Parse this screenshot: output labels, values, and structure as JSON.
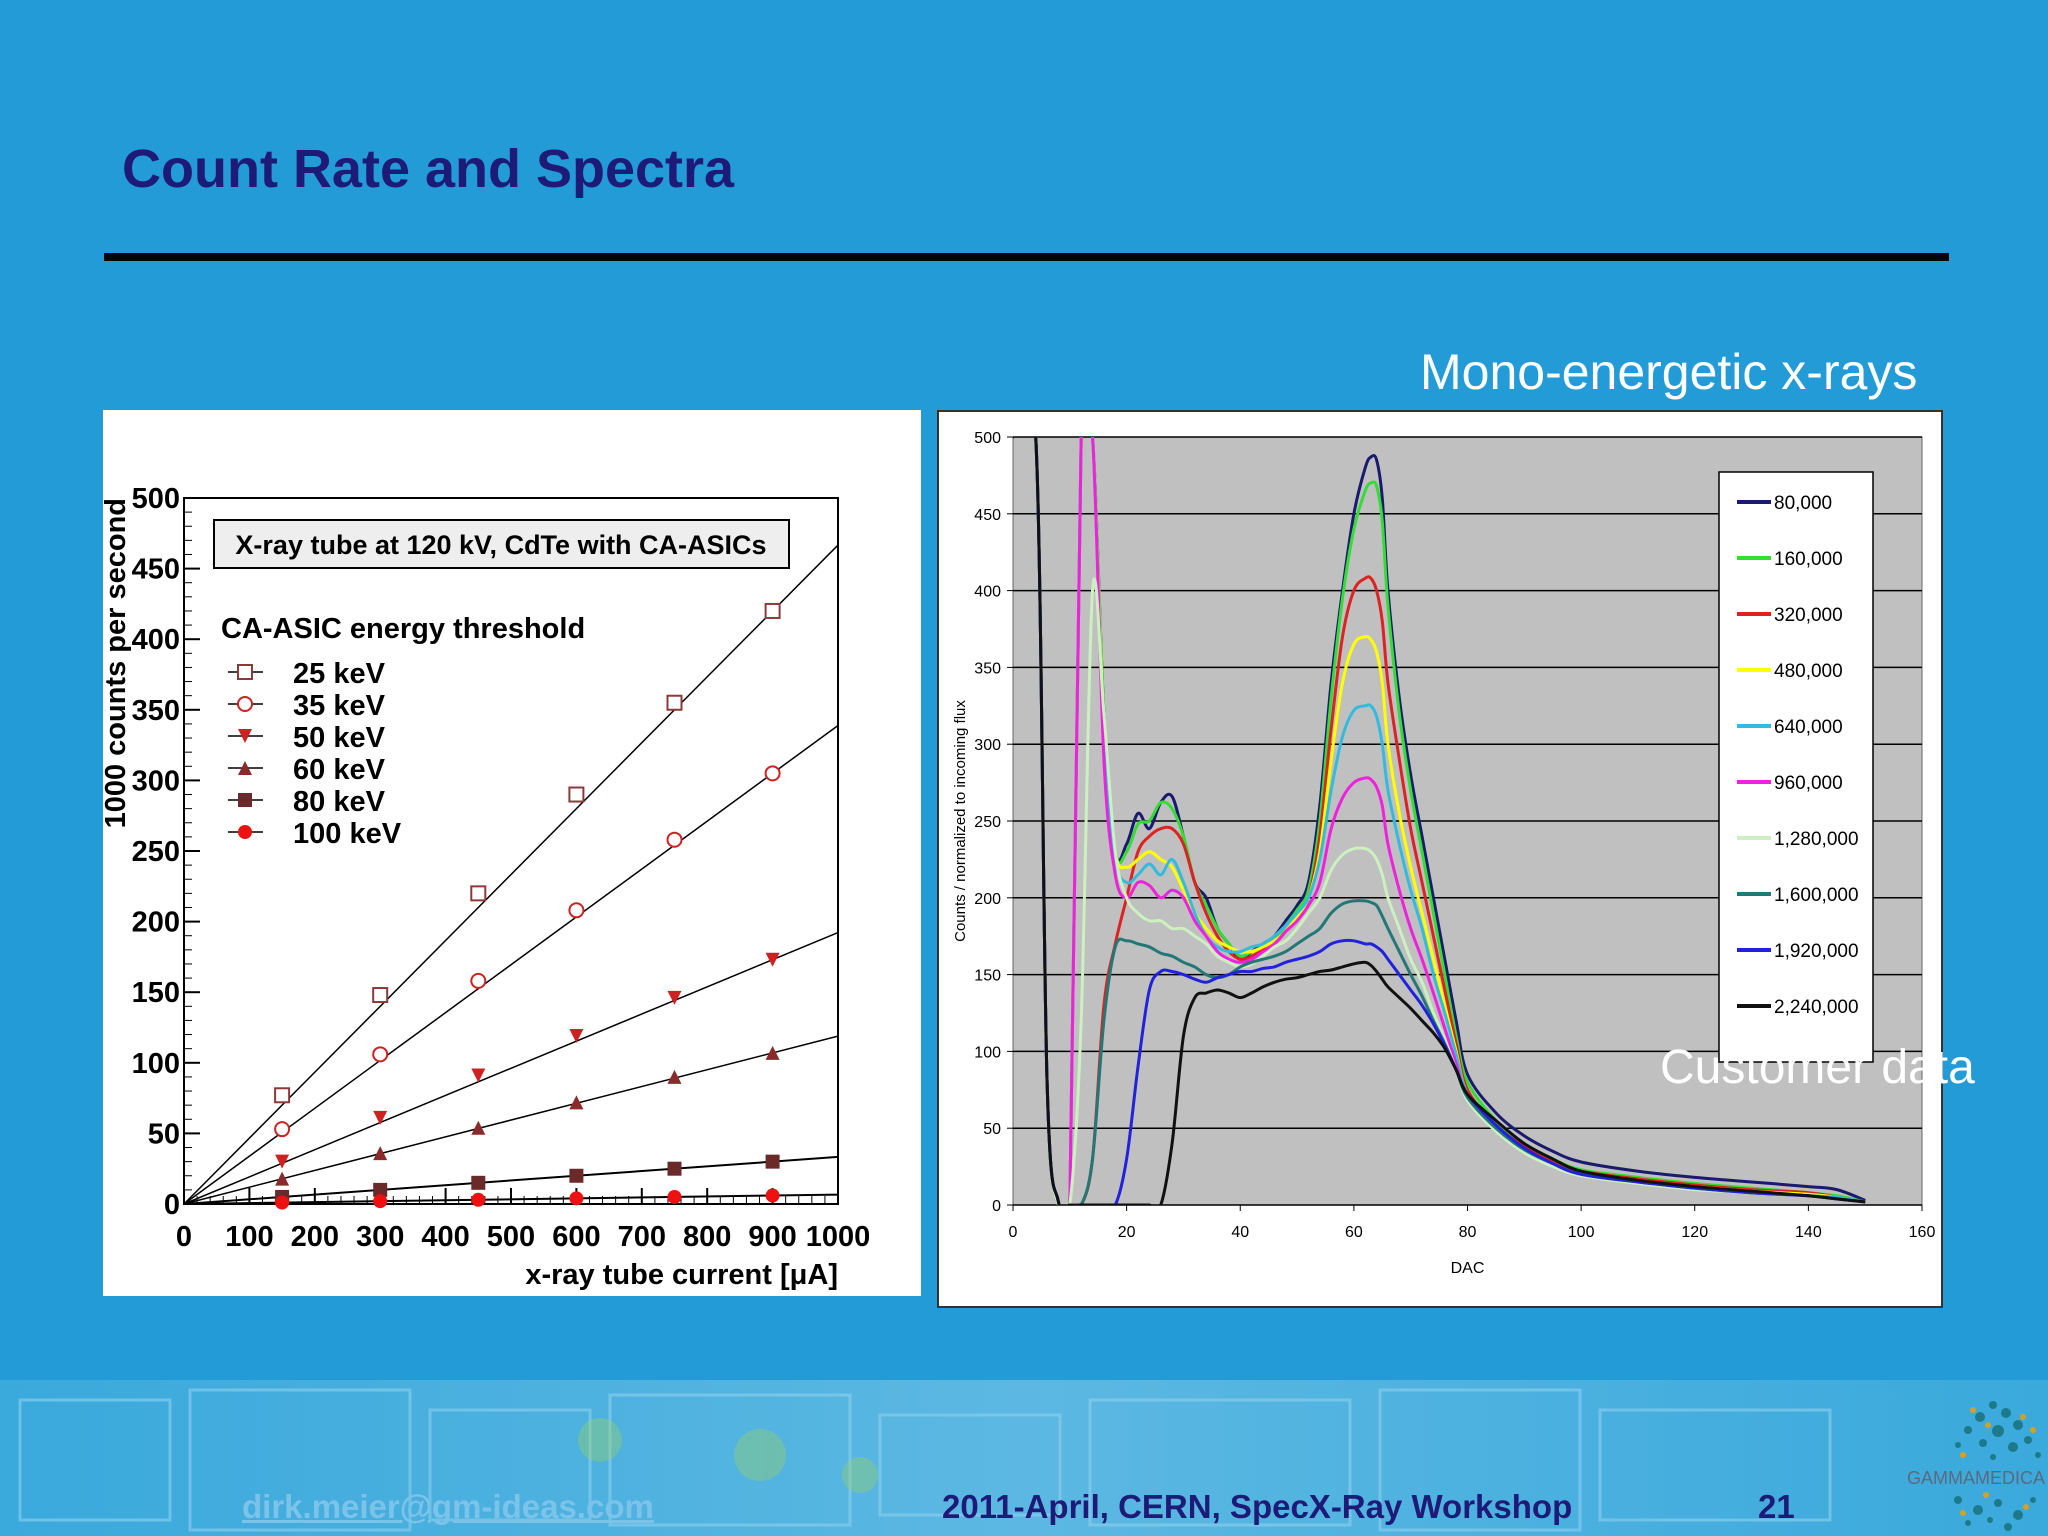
{
  "slide": {
    "title": "Count Rate and Spectra",
    "caption_mono": "Mono-energetic x-rays",
    "caption_customer": "Customer data"
  },
  "footer": {
    "email": "dirk.meier@gm-ideas.com",
    "event": "2011-April, CERN, SpecX-Ray  Workshop",
    "page": "21",
    "logo_text": "GAMMAMEDICA"
  },
  "colors": {
    "background": "#239bd6",
    "title": "#1d1a78",
    "rule": "#050505"
  },
  "chart_data": [
    {
      "type": "scatter",
      "title": "X-ray tube at 120 kV, CdTe with CA-ASICs",
      "legend_title": "CA-ASIC energy threshold",
      "legend_position": "top-left",
      "xlabel": "x-ray tube current [μA]",
      "ylabel": "1000 counts per second",
      "xlim": [
        0,
        1000
      ],
      "ylim": [
        0,
        500
      ],
      "xticks": [
        0,
        100,
        200,
        300,
        400,
        500,
        600,
        700,
        800,
        900,
        1000
      ],
      "yticks": [
        0,
        50,
        100,
        150,
        200,
        250,
        300,
        350,
        400,
        450,
        500
      ],
      "x": [
        150,
        300,
        450,
        600,
        750,
        900
      ],
      "grid": false,
      "series": [
        {
          "name": "25 keV",
          "marker": "square-open",
          "color": "#8b3a3a",
          "values": [
            77,
            148,
            220,
            290,
            355,
            420
          ]
        },
        {
          "name": "35 keV",
          "marker": "circle-open",
          "color": "#cc2222",
          "values": [
            53,
            106,
            158,
            208,
            258,
            305
          ]
        },
        {
          "name": "50 keV",
          "marker": "triangle-down",
          "color": "#cc2222",
          "values": [
            30,
            61,
            91,
            119,
            146,
            173
          ]
        },
        {
          "name": "60 keV",
          "marker": "triangle-up",
          "color": "#8b2a2a",
          "values": [
            18,
            36,
            54,
            72,
            90,
            107
          ]
        },
        {
          "name": "80 keV",
          "marker": "square",
          "color": "#6b2a2a",
          "values": [
            5,
            10,
            15,
            20,
            25,
            30
          ]
        },
        {
          "name": "100 keV",
          "marker": "circle",
          "color": "#ee1111",
          "values": [
            1,
            2,
            3,
            4,
            5,
            6
          ]
        }
      ]
    },
    {
      "type": "line",
      "xlabel": "DAC",
      "ylabel": "Counts / normalized to incoming flux",
      "xlim": [
        0,
        160
      ],
      "ylim": [
        0,
        500
      ],
      "xticks": [
        0,
        20,
        40,
        60,
        80,
        100,
        120,
        140,
        160
      ],
      "yticks": [
        0,
        50,
        100,
        150,
        200,
        250,
        300,
        350,
        400,
        450,
        500
      ],
      "grid": true,
      "legend_position": "right",
      "plot_background": "#c0c0c0",
      "x": [
        0,
        4,
        6,
        8,
        10,
        12,
        14,
        16,
        18,
        20,
        22,
        24,
        26,
        28,
        30,
        32,
        34,
        36,
        38,
        40,
        42,
        44,
        46,
        48,
        50,
        52,
        54,
        56,
        58,
        60,
        62,
        63,
        64,
        65,
        66,
        68,
        70,
        72,
        74,
        76,
        78,
        80,
        85,
        90,
        95,
        100,
        110,
        120,
        130,
        140,
        145,
        150
      ],
      "series": [
        {
          "name": "80,000",
          "color": "#1a1a6e",
          "values": [
            500,
            500,
            80,
            2,
            0,
            500,
            500,
            320,
            230,
            235,
            255,
            245,
            262,
            266,
            240,
            210,
            200,
            180,
            170,
            160,
            165,
            170,
            175,
            185,
            195,
            210,
            260,
            340,
            400,
            450,
            480,
            487,
            485,
            460,
            400,
            330,
            280,
            240,
            200,
            160,
            120,
            85,
            60,
            45,
            35,
            28,
            22,
            18,
            15,
            12,
            10,
            3
          ]
        },
        {
          "name": "160,000",
          "color": "#33dd33",
          "values": [
            500,
            500,
            80,
            2,
            0,
            500,
            500,
            320,
            230,
            230,
            248,
            250,
            262,
            258,
            240,
            210,
            195,
            180,
            170,
            162,
            165,
            168,
            172,
            182,
            192,
            205,
            250,
            330,
            395,
            440,
            465,
            470,
            468,
            445,
            390,
            320,
            270,
            230,
            190,
            150,
            110,
            80,
            55,
            40,
            30,
            23,
            18,
            14,
            11,
            8,
            6,
            2
          ]
        },
        {
          "name": "320,000",
          "color": "#dd2222",
          "values": [
            500,
            500,
            80,
            2,
            0,
            0,
            30,
            130,
            170,
            200,
            230,
            240,
            245,
            245,
            235,
            210,
            190,
            175,
            165,
            160,
            162,
            166,
            170,
            178,
            188,
            200,
            240,
            310,
            370,
            400,
            408,
            408,
            400,
            380,
            340,
            290,
            245,
            210,
            175,
            140,
            105,
            75,
            52,
            38,
            28,
            22,
            17,
            13,
            10,
            8,
            5,
            2
          ]
        },
        {
          "name": "480,000",
          "color": "#ffff00",
          "values": [
            500,
            500,
            80,
            2,
            0,
            500,
            500,
            310,
            230,
            220,
            225,
            230,
            225,
            220,
            205,
            190,
            180,
            172,
            168,
            165,
            165,
            168,
            172,
            178,
            188,
            200,
            230,
            290,
            340,
            365,
            370,
            368,
            360,
            340,
            300,
            255,
            220,
            190,
            160,
            130,
            100,
            72,
            50,
            36,
            27,
            20,
            15,
            12,
            9,
            7,
            5,
            2
          ]
        },
        {
          "name": "640,000",
          "color": "#33bbdd",
          "values": [
            500,
            500,
            80,
            2,
            0,
            500,
            500,
            300,
            225,
            210,
            215,
            222,
            215,
            225,
            210,
            190,
            175,
            168,
            165,
            165,
            168,
            170,
            175,
            182,
            190,
            200,
            225,
            270,
            305,
            322,
            325,
            325,
            318,
            300,
            270,
            235,
            205,
            180,
            150,
            125,
            98,
            72,
            50,
            35,
            26,
            20,
            15,
            11,
            8,
            6,
            5,
            2
          ]
        },
        {
          "name": "960,000",
          "color": "#ee22dd",
          "values": [
            500,
            500,
            80,
            2,
            0,
            500,
            500,
            290,
            215,
            200,
            210,
            208,
            200,
            205,
            200,
            185,
            175,
            165,
            160,
            158,
            160,
            165,
            170,
            178,
            185,
            195,
            210,
            245,
            265,
            275,
            278,
            277,
            272,
            260,
            235,
            205,
            180,
            160,
            138,
            115,
            92,
            70,
            50,
            35,
            26,
            20,
            15,
            11,
            8,
            6,
            4,
            2
          ]
        },
        {
          "name": "1,280,000",
          "color": "#ccf0c0",
          "values": [
            500,
            500,
            80,
            0,
            0,
            120,
            400,
            320,
            230,
            200,
            190,
            185,
            185,
            180,
            180,
            175,
            170,
            162,
            158,
            155,
            157,
            162,
            168,
            172,
            180,
            190,
            200,
            218,
            228,
            232,
            232,
            230,
            225,
            215,
            200,
            180,
            160,
            145,
            125,
            108,
            88,
            68,
            48,
            34,
            25,
            19,
            14,
            10,
            8,
            6,
            4,
            2
          ]
        },
        {
          "name": "1,600,000",
          "color": "#227777",
          "values": [
            500,
            500,
            80,
            2,
            0,
            0,
            30,
            120,
            168,
            172,
            170,
            168,
            164,
            162,
            158,
            155,
            150,
            148,
            150,
            155,
            158,
            160,
            162,
            165,
            170,
            175,
            180,
            190,
            196,
            198,
            198,
            197,
            195,
            188,
            180,
            165,
            150,
            136,
            120,
            105,
            88,
            70,
            50,
            36,
            27,
            20,
            15,
            11,
            8,
            6,
            4,
            2
          ]
        },
        {
          "name": "1,920,000",
          "color": "#2222dd",
          "values": [
            500,
            500,
            80,
            2,
            0,
            0,
            0,
            0,
            0,
            30,
            90,
            140,
            152,
            152,
            150,
            147,
            145,
            148,
            150,
            152,
            152,
            154,
            155,
            158,
            160,
            162,
            165,
            170,
            172,
            172,
            170,
            170,
            168,
            165,
            160,
            150,
            140,
            130,
            118,
            104,
            88,
            72,
            52,
            37,
            27,
            20,
            15,
            11,
            8,
            6,
            4,
            2
          ]
        },
        {
          "name": "2,240,000",
          "color": "#111111",
          "values": [
            500,
            500,
            80,
            2,
            0,
            0,
            0,
            0,
            0,
            0,
            0,
            0,
            0,
            40,
            110,
            135,
            138,
            140,
            138,
            135,
            138,
            142,
            145,
            147,
            148,
            150,
            152,
            153,
            155,
            157,
            158,
            156,
            152,
            147,
            142,
            135,
            128,
            120,
            112,
            102,
            88,
            72,
            55,
            40,
            30,
            22,
            16,
            12,
            9,
            6,
            4,
            2
          ]
        }
      ]
    }
  ]
}
